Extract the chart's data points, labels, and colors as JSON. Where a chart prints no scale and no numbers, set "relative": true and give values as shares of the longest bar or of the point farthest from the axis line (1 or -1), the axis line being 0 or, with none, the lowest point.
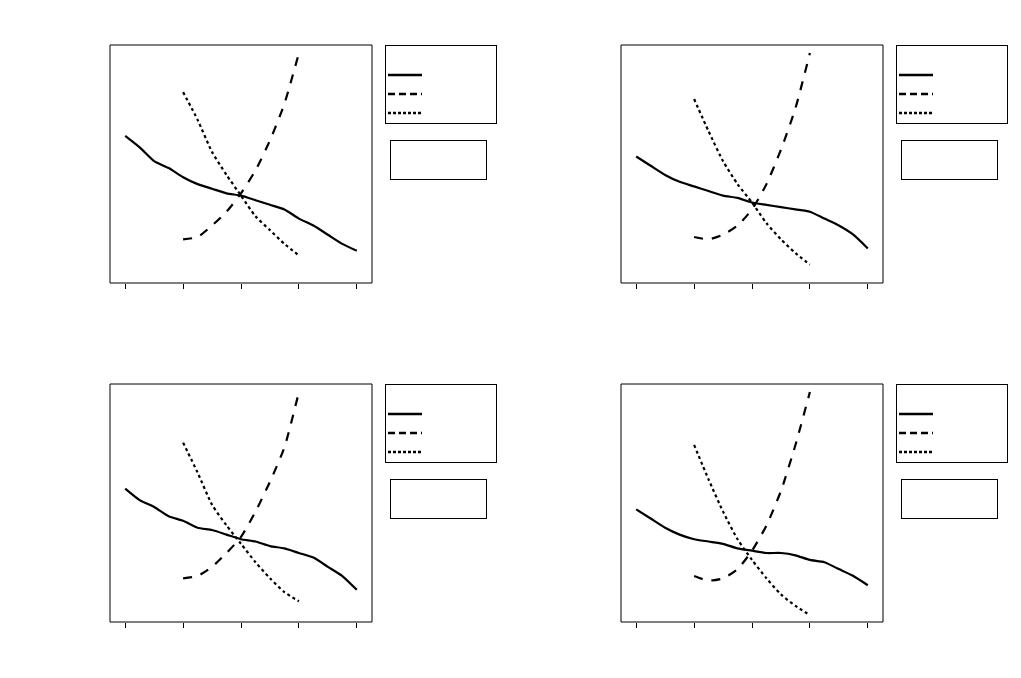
{
  "chart_data": [
    {
      "type": "line",
      "relative": true,
      "marker": "none",
      "categories": [
        null,
        null,
        null,
        null,
        null,
        null,
        null,
        null,
        null,
        null,
        null,
        null,
        null,
        null,
        null,
        null,
        null
      ],
      "series": [
        {
          "color": "#000000",
          "line_style": "solid",
          "values": [
            0.64,
            0.59,
            0.53,
            0.5,
            0.46,
            0.43,
            0.41,
            0.39,
            0.38,
            0.36,
            0.34,
            0.32,
            0.28,
            0.25,
            0.21,
            0.17,
            0.14
          ]
        },
        {
          "color": "#000000",
          "line_style": "dashed",
          "values": [
            null,
            null,
            null,
            null,
            0.19,
            0.2,
            0.25,
            0.31,
            0.39,
            0.49,
            0.62,
            0.78,
            1,
            null,
            null,
            null,
            null
          ]
        },
        {
          "color": "#000000",
          "line_style": "dotted",
          "values": [
            null,
            null,
            null,
            null,
            0.83,
            0.71,
            0.57,
            0.47,
            0.38,
            0.29,
            0.23,
            0.17,
            0.12,
            null,
            null,
            null,
            null
          ]
        }
      ]
    },
    {
      "type": "line",
      "relative": true,
      "marker": "none",
      "categories": [
        null,
        null,
        null,
        null,
        null,
        null,
        null,
        null,
        null,
        null,
        null,
        null,
        null,
        null,
        null,
        null,
        null
      ],
      "series": [
        {
          "color": "#000000",
          "line_style": "solid",
          "values": [
            0.55,
            0.51,
            0.47,
            0.44,
            0.42,
            0.4,
            0.38,
            0.37,
            0.35,
            0.34,
            0.33,
            0.32,
            0.31,
            0.28,
            0.25,
            0.21,
            0.15
          ]
        },
        {
          "color": "#000000",
          "line_style": "dashed",
          "values": [
            null,
            null,
            null,
            null,
            0.2,
            0.19,
            0.21,
            0.25,
            0.32,
            0.43,
            0.58,
            0.76,
            1,
            null,
            null,
            null,
            null
          ]
        },
        {
          "color": "#000000",
          "line_style": "dotted",
          "values": [
            null,
            null,
            null,
            null,
            0.8,
            0.66,
            0.53,
            0.43,
            0.35,
            0.26,
            0.19,
            0.13,
            0.08,
            null,
            null,
            null,
            null
          ]
        }
      ]
    },
    {
      "type": "line",
      "relative": true,
      "marker": "none",
      "categories": [
        null,
        null,
        null,
        null,
        null,
        null,
        null,
        null,
        null,
        null,
        null,
        null,
        null,
        null,
        null,
        null,
        null
      ],
      "series": [
        {
          "color": "#000000",
          "line_style": "solid",
          "values": [
            0.58,
            0.53,
            0.5,
            0.46,
            0.44,
            0.41,
            0.4,
            0.38,
            0.36,
            0.35,
            0.33,
            0.32,
            0.3,
            0.28,
            0.24,
            0.2,
            0.14
          ]
        },
        {
          "color": "#000000",
          "line_style": "dashed",
          "values": [
            null,
            null,
            null,
            null,
            0.19,
            0.2,
            0.24,
            0.3,
            0.37,
            0.48,
            0.61,
            0.76,
            1,
            null,
            null,
            null,
            null
          ]
        },
        {
          "color": "#000000",
          "line_style": "dotted",
          "values": [
            null,
            null,
            null,
            null,
            0.78,
            0.65,
            0.51,
            0.42,
            0.34,
            0.26,
            0.19,
            0.13,
            0.09,
            null,
            null,
            null,
            null
          ]
        }
      ]
    },
    {
      "type": "line",
      "relative": true,
      "marker": "none",
      "categories": [
        null,
        null,
        null,
        null,
        null,
        null,
        null,
        null,
        null,
        null,
        null,
        null,
        null,
        null,
        null,
        null,
        null
      ],
      "series": [
        {
          "color": "#000000",
          "line_style": "solid",
          "values": [
            0.49,
            0.45,
            0.41,
            0.38,
            0.36,
            0.35,
            0.34,
            0.32,
            0.31,
            0.3,
            0.3,
            0.29,
            0.27,
            0.26,
            0.23,
            0.2,
            0.16
          ]
        },
        {
          "color": "#000000",
          "line_style": "dashed",
          "values": [
            null,
            null,
            null,
            null,
            0.2,
            0.18,
            0.19,
            0.23,
            0.31,
            0.42,
            0.57,
            0.77,
            1,
            null,
            null,
            null,
            null
          ]
        },
        {
          "color": "#000000",
          "line_style": "dotted",
          "values": [
            null,
            null,
            null,
            null,
            0.77,
            0.62,
            0.48,
            0.36,
            0.27,
            0.19,
            0.12,
            0.07,
            0.03,
            null,
            null,
            null,
            null
          ]
        }
      ]
    }
  ]
}
